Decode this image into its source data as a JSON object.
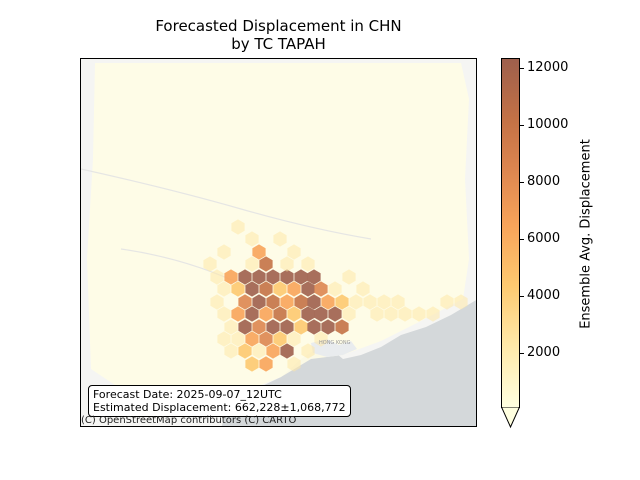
{
  "title": {
    "line1": "Forecasted Displacement in CHN",
    "line2": "by TC TAPAH"
  },
  "info_box": {
    "forecast_date": "Forecast Date: 2025-09-07_12UTC",
    "estimated_displacement": "Estimated Displacement: 662,228±1,068,772"
  },
  "attribution": "(C) OpenStreetMap contributors (C) CARTO",
  "map_labels": {
    "hong_kong": "HONG KONG"
  },
  "colorbar": {
    "label": "Ensemble Avg. Displacement",
    "ticks": [
      "2000",
      "4000",
      "6000",
      "8000",
      "10000",
      "12000"
    ],
    "range": [
      0,
      12500
    ],
    "colors": [
      "#ffffe0",
      "#fee8a8",
      "#fdc970",
      "#f8a45a",
      "#dd8650",
      "#c47246",
      "#9e5f4c"
    ]
  }
}
